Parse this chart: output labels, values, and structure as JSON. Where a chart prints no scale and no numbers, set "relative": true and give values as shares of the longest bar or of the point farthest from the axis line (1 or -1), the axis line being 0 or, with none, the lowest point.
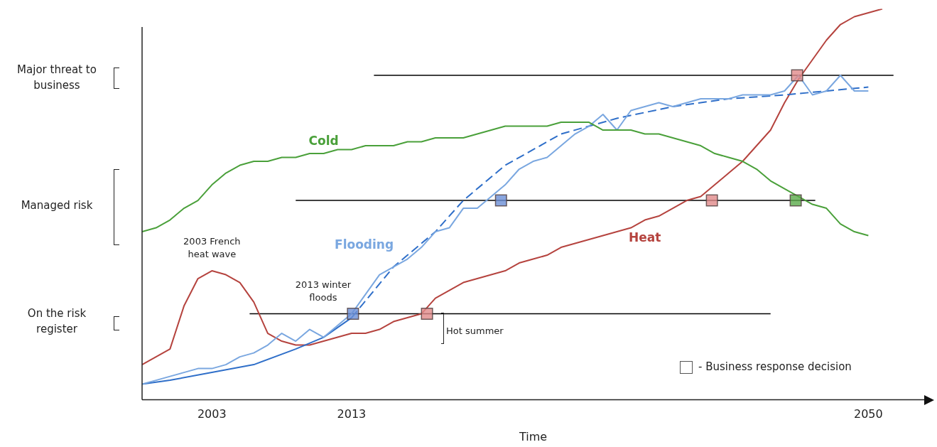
{
  "chart_data": {
    "type": "line",
    "relative": true,
    "xlabel": "Time",
    "xlim": [
      1998,
      2054
    ],
    "xticks": [
      2003,
      2013,
      2050
    ],
    "grid": false,
    "annotations": [
      "Major threat to business",
      "Managed risk",
      "On the risk register",
      {
        "text": "2003 French heat wave",
        "x": 2003,
        "y": 0.33
      },
      {
        "text": "2013 winter floods",
        "x": 2013,
        "y": 0.22
      },
      "Hot summer",
      "- Business response decision"
    ],
    "series": [
      {
        "name": "Cold",
        "color": "#4aa03a",
        "x": [
          1998,
          1999,
          2000,
          2001,
          2002,
          2003,
          2004,
          2005,
          2006,
          2007,
          2008,
          2009,
          2010,
          2011,
          2012,
          2013,
          2014,
          2015,
          2016,
          2017,
          2018,
          2019,
          2020,
          2021,
          2022,
          2023,
          2024,
          2025,
          2026,
          2027,
          2028,
          2029,
          2030,
          2031,
          2032,
          2033,
          2034,
          2035,
          2036,
          2037,
          2038,
          2039,
          2040,
          2041,
          2042,
          2043,
          2044,
          2045,
          2046,
          2047,
          2048,
          2049,
          2050
        ],
        "values": [
          0.43,
          0.44,
          0.46,
          0.49,
          0.51,
          0.55,
          0.58,
          0.6,
          0.61,
          0.61,
          0.62,
          0.62,
          0.63,
          0.63,
          0.64,
          0.64,
          0.65,
          0.65,
          0.65,
          0.66,
          0.66,
          0.67,
          0.67,
          0.67,
          0.68,
          0.69,
          0.7,
          0.7,
          0.7,
          0.7,
          0.71,
          0.71,
          0.71,
          0.69,
          0.69,
          0.69,
          0.68,
          0.68,
          0.67,
          0.66,
          0.65,
          0.63,
          0.62,
          0.61,
          0.59,
          0.56,
          0.54,
          0.52,
          0.5,
          0.49,
          0.45,
          0.43,
          0.42
        ]
      },
      {
        "name": "Flooding",
        "color": "#7aa7e0",
        "x": [
          1998,
          1999,
          2000,
          2001,
          2002,
          2003,
          2004,
          2005,
          2006,
          2007,
          2008,
          2009,
          2010,
          2011,
          2012,
          2013,
          2014,
          2015,
          2016,
          2017,
          2018,
          2019,
          2020,
          2021,
          2022,
          2023,
          2024,
          2025,
          2026,
          2027,
          2028,
          2029,
          2030,
          2031,
          2032,
          2033,
          2034,
          2035,
          2036,
          2037,
          2038,
          2039,
          2040,
          2041,
          2042,
          2043,
          2044,
          2045,
          2046,
          2047,
          2048,
          2049,
          2050
        ],
        "values": [
          0.04,
          0.05,
          0.06,
          0.07,
          0.08,
          0.08,
          0.09,
          0.11,
          0.12,
          0.14,
          0.17,
          0.15,
          0.18,
          0.16,
          0.19,
          0.22,
          0.27,
          0.32,
          0.34,
          0.36,
          0.39,
          0.43,
          0.44,
          0.49,
          0.49,
          0.52,
          0.55,
          0.59,
          0.61,
          0.62,
          0.65,
          0.68,
          0.7,
          0.73,
          0.69,
          0.74,
          0.75,
          0.76,
          0.75,
          0.76,
          0.77,
          0.77,
          0.77,
          0.78,
          0.78,
          0.78,
          0.79,
          0.83,
          0.78,
          0.79,
          0.83,
          0.79,
          0.79
        ]
      },
      {
        "type": "line",
        "color": "#2f6fc9",
        "line_style": "solid",
        "x": [
          1998,
          2000,
          2003,
          2006,
          2009,
          2011,
          2013
        ],
        "values": [
          0.04,
          0.05,
          0.07,
          0.09,
          0.13,
          0.16,
          0.21
        ]
      },
      {
        "type": "line",
        "color": "#2f6fc9",
        "line_style": "dashed",
        "x": [
          2013,
          2016,
          2019,
          2021,
          2024,
          2028,
          2032,
          2036,
          2040,
          2044,
          2050
        ],
        "values": [
          0.21,
          0.34,
          0.43,
          0.51,
          0.6,
          0.68,
          0.72,
          0.75,
          0.77,
          0.78,
          0.8
        ]
      },
      {
        "name": "Heat",
        "color": "#b5433e",
        "x": [
          1998,
          1999,
          2000,
          2001,
          2002,
          2003,
          2004,
          2005,
          2006,
          2007,
          2008,
          2009,
          2010,
          2011,
          2012,
          2013,
          2014,
          2015,
          2016,
          2017,
          2018,
          2019,
          2020,
          2021,
          2022,
          2023,
          2024,
          2025,
          2026,
          2027,
          2028,
          2029,
          2030,
          2031,
          2032,
          2033,
          2034,
          2035,
          2036,
          2037,
          2038,
          2039,
          2040,
          2041,
          2042,
          2043,
          2044,
          2045,
          2046,
          2047,
          2048,
          2049,
          2050,
          2051
        ],
        "values": [
          0.09,
          0.11,
          0.13,
          0.24,
          0.31,
          0.33,
          0.32,
          0.3,
          0.25,
          0.17,
          0.15,
          0.14,
          0.14,
          0.15,
          0.16,
          0.17,
          0.17,
          0.18,
          0.2,
          0.21,
          0.22,
          0.26,
          0.28,
          0.3,
          0.31,
          0.32,
          0.33,
          0.35,
          0.36,
          0.37,
          0.39,
          0.4,
          0.41,
          0.42,
          0.43,
          0.44,
          0.46,
          0.47,
          0.49,
          0.51,
          0.52,
          0.55,
          0.58,
          0.61,
          0.65,
          0.69,
          0.76,
          0.82,
          0.87,
          0.92,
          0.96,
          0.98,
          0.99,
          1.0
        ]
      },
      {
        "type": "line",
        "color": "#000000",
        "x": [
          2014.6,
          2051.8
        ],
        "values": [
          0.83,
          0.83
        ]
      },
      {
        "type": "line",
        "color": "#000000",
        "x": [
          2009,
          2046.2
        ],
        "values": [
          0.51,
          0.51
        ]
      },
      {
        "type": "line",
        "color": "#000000",
        "x": [
          2005.7,
          2043
        ],
        "values": [
          0.22,
          0.22
        ]
      },
      {
        "type": "scatter",
        "marker": "square",
        "x": [
          2013.1,
          2018.4,
          2023.7,
          2038.8,
          2044.8,
          2044.9
        ],
        "values": [
          0.22,
          0.22,
          0.51,
          0.51,
          0.51,
          0.83
        ],
        "colors": [
          "#6b8fd6",
          "#e08a8a",
          "#6b8fd6",
          "#e08a8a",
          "#5aaa4a",
          "#e08a8a"
        ]
      }
    ]
  }
}
